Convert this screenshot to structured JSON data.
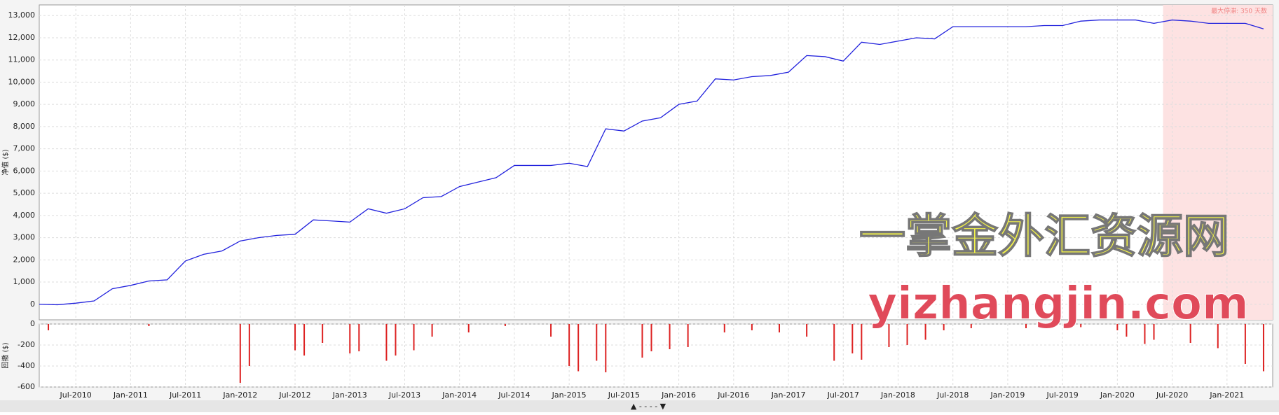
{
  "chart_data": [
    {
      "type": "line",
      "y_label": "净值 ($)",
      "xlim": [
        "2010-03",
        "2021-06"
      ],
      "ylim": [
        -700,
        13480
      ],
      "yticks": [
        0,
        {
          "value": 1000,
          "label": "1,000"
        },
        {
          "value": 2000,
          "label": "2,000"
        },
        {
          "value": 3000,
          "label": "3,000"
        },
        {
          "value": 4000,
          "label": "4,000"
        },
        {
          "value": 5000,
          "label": "5,000"
        },
        {
          "value": 6000,
          "label": "6,000"
        },
        {
          "value": 7000,
          "label": "7,000"
        },
        {
          "value": 8000,
          "label": "8,000"
        },
        {
          "value": 9000,
          "label": "9,000"
        },
        {
          "value": 10000,
          "label": "10,000"
        },
        {
          "value": 11000,
          "label": "11,000"
        },
        {
          "value": 12000,
          "label": "12,000"
        },
        {
          "value": 13000,
          "label": "13,000"
        }
      ],
      "grid": true,
      "highlight": {
        "x": [
          "2020-06",
          "2021-06"
        ],
        "label": "最大停滞: 350 天数",
        "color": "#fde2e2"
      },
      "x": [
        "2010-03",
        "2010-05",
        "2010-07",
        "2010-09",
        "2010-11",
        "2011-01",
        "2011-03",
        "2011-05",
        "2011-07",
        "2011-09",
        "2011-11",
        "2012-01",
        "2012-03",
        "2012-05",
        "2012-07",
        "2012-09",
        "2012-11",
        "2013-01",
        "2013-03",
        "2013-05",
        "2013-07",
        "2013-09",
        "2013-11",
        "2014-01",
        "2014-03",
        "2014-05",
        "2014-07",
        "2014-09",
        "2014-11",
        "2015-01",
        "2015-03",
        "2015-05",
        "2015-07",
        "2015-09",
        "2015-11",
        "2016-01",
        "2016-03",
        "2016-05",
        "2016-07",
        "2016-09",
        "2016-11",
        "2017-01",
        "2017-03",
        "2017-05",
        "2017-07",
        "2017-09",
        "2017-11",
        "2018-01",
        "2018-03",
        "2018-05",
        "2018-07",
        "2018-09",
        "2018-11",
        "2019-01",
        "2019-03",
        "2019-05",
        "2019-07",
        "2019-09",
        "2019-11",
        "2020-01",
        "2020-03",
        "2020-05",
        "2020-07",
        "2020-09",
        "2020-11",
        "2021-01",
        "2021-03",
        "2021-05"
      ],
      "series": [
        {
          "name": "净值",
          "color": "#2222dd",
          "values": [
            0,
            -20,
            50,
            150,
            700,
            850,
            1050,
            1100,
            1950,
            2250,
            2400,
            2850,
            3000,
            3100,
            3150,
            3800,
            3750,
            3700,
            4300,
            4100,
            4300,
            4800,
            4850,
            5300,
            5500,
            5700,
            6250,
            6250,
            6250,
            6350,
            6200,
            7900,
            7800,
            8250,
            8400,
            9000,
            9150,
            10150,
            10100,
            10250,
            10300,
            10450,
            11200,
            11150,
            10950,
            11800,
            11700,
            11850,
            12000,
            11950,
            12500,
            12500,
            12500,
            12500,
            12500,
            12550,
            12550,
            12750,
            12800,
            12800,
            12800,
            12650,
            12800,
            12750,
            12650,
            12650,
            12650,
            12400
          ]
        }
      ]
    },
    {
      "type": "bar",
      "y_label": "回撤 ($)",
      "xlim": [
        "2010-03",
        "2021-06"
      ],
      "ylim": [
        -600,
        0
      ],
      "yticks": [
        -600,
        -400,
        -200,
        0
      ],
      "grid": true,
      "xticks": [
        {
          "value": "2010-07",
          "label": "Jul-2010"
        },
        {
          "value": "2011-01",
          "label": "Jan-2011"
        },
        {
          "value": "2011-07",
          "label": "Jul-2011"
        },
        {
          "value": "2012-01",
          "label": "Jan-2012"
        },
        {
          "value": "2012-07",
          "label": "Jul-2012"
        },
        {
          "value": "2013-01",
          "label": "Jan-2013"
        },
        {
          "value": "2013-07",
          "label": "Jul-2013"
        },
        {
          "value": "2014-01",
          "label": "Jan-2014"
        },
        {
          "value": "2014-07",
          "label": "Jul-2014"
        },
        {
          "value": "2015-01",
          "label": "Jan-2015"
        },
        {
          "value": "2015-07",
          "label": "Jul-2015"
        },
        {
          "value": "2016-01",
          "label": "Jan-2016"
        },
        {
          "value": "2016-07",
          "label": "Jul-2016"
        },
        {
          "value": "2017-01",
          "label": "Jan-2017"
        },
        {
          "value": "2017-07",
          "label": "Jul-2017"
        },
        {
          "value": "2018-01",
          "label": "Jan-2018"
        },
        {
          "value": "2018-07",
          "label": "Jul-2018"
        },
        {
          "value": "2019-01",
          "label": "Jan-2019"
        },
        {
          "value": "2019-07",
          "label": "Jul-2019"
        },
        {
          "value": "2020-01",
          "label": "Jan-2020"
        },
        {
          "value": "2020-07",
          "label": "Jul-2020"
        },
        {
          "value": "2021-01",
          "label": "Jan-2021"
        }
      ],
      "x": [
        "2010-04",
        "2011-03",
        "2012-01",
        "2012-02",
        "2012-07",
        "2012-08",
        "2012-10",
        "2013-01",
        "2013-02",
        "2013-05",
        "2013-06",
        "2013-08",
        "2013-10",
        "2014-02",
        "2014-06",
        "2014-11",
        "2015-01",
        "2015-02",
        "2015-04",
        "2015-05",
        "2015-09",
        "2015-10",
        "2015-12",
        "2016-02",
        "2016-06",
        "2016-09",
        "2016-12",
        "2017-03",
        "2017-06",
        "2017-08",
        "2017-09",
        "2017-12",
        "2018-02",
        "2018-04",
        "2018-06",
        "2018-09",
        "2019-03",
        "2019-09",
        "2020-01",
        "2020-02",
        "2020-04",
        "2020-05",
        "2020-09",
        "2020-12",
        "2021-03",
        "2021-05"
      ],
      "series": [
        {
          "name": "回撤",
          "color": "#dd2222",
          "values": [
            -60,
            -20,
            -560,
            -400,
            -250,
            -300,
            -180,
            -280,
            -260,
            -350,
            -300,
            -250,
            -120,
            -80,
            -20,
            -120,
            -400,
            -450,
            -350,
            -460,
            -320,
            -260,
            -240,
            -220,
            -80,
            -60,
            -80,
            -120,
            -350,
            -280,
            -340,
            -220,
            -200,
            -150,
            -60,
            -40,
            -40,
            -30,
            -60,
            -120,
            -190,
            -150,
            -180,
            -230,
            -380,
            -450
          ]
        }
      ]
    }
  ],
  "watermark": {
    "title": "一掌金外汇资源网",
    "url": "yizhangjin.com"
  }
}
